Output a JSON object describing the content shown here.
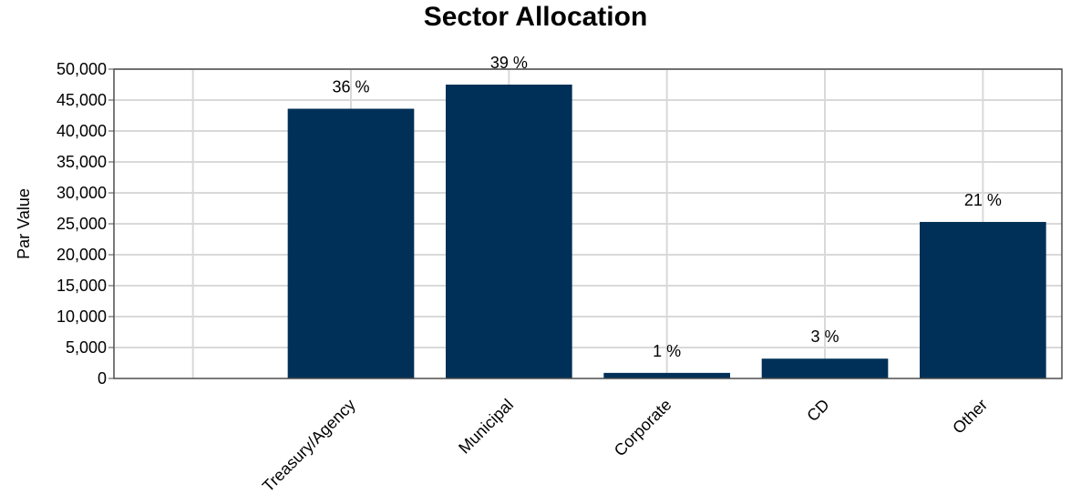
{
  "chart_data": {
    "type": "bar",
    "title": "Sector Allocation",
    "xlabel": "",
    "ylabel": "Par Value",
    "categories": [
      "Treasury/Agency",
      "Municipal",
      "Corporate",
      "CD",
      "Other"
    ],
    "values": [
      43600,
      47500,
      900,
      3200,
      25300
    ],
    "data_labels": [
      "36 %",
      "39 %",
      "1 %",
      "3 %",
      "21 %"
    ],
    "ylim": [
      0,
      50000
    ],
    "yticks": [
      0,
      5000,
      10000,
      15000,
      20000,
      25000,
      30000,
      35000,
      40000,
      45000,
      50000
    ],
    "ytick_labels": [
      "0",
      "5,000",
      "10,000",
      "15,000",
      "20,000",
      "25,000",
      "30,000",
      "35,000",
      "40,000",
      "45,000",
      "50,000"
    ],
    "grid": true,
    "legend": "none",
    "colors": {
      "bar": "#003057",
      "grid": "#d9d9d9",
      "axis": "#4d4d4d"
    }
  }
}
